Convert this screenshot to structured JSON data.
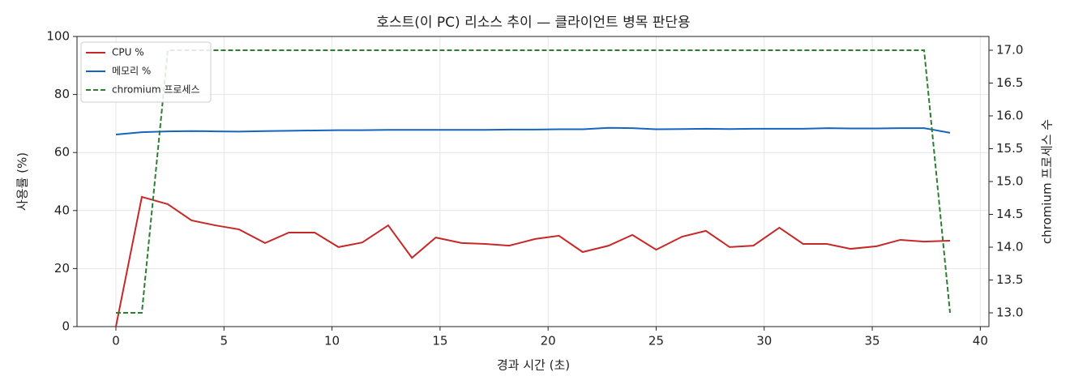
{
  "chart_data": {
    "type": "line",
    "title": "호스트(이 PC) 리소스 추이 — 클라이언트 병목 판단용",
    "xlabel": "경과 시간 (초)",
    "ylabel": "사용률 (%)",
    "y2label": "chromium 프로세스 수",
    "x": [
      0,
      1.2,
      2.4,
      3.5,
      4.6,
      5.7,
      6.9,
      8.0,
      9.2,
      10.3,
      11.4,
      12.6,
      13.7,
      14.8,
      16.0,
      17.1,
      18.2,
      19.4,
      20.5,
      21.6,
      22.8,
      23.9,
      25.0,
      26.2,
      27.3,
      28.4,
      29.5,
      30.7,
      31.8,
      32.9,
      34.0,
      35.2,
      36.3,
      37.4,
      38.6
    ],
    "series": [
      {
        "name": "CPU %",
        "color": "#c62828",
        "linestyle": "solid",
        "values": [
          0,
          44.7,
          42.2,
          36.6,
          34.9,
          33.5,
          28.8,
          32.4,
          32.4,
          27.4,
          29.0,
          34.9,
          23.7,
          30.7,
          28.8,
          28.5,
          27.9,
          30.2,
          31.3,
          25.7,
          27.9,
          31.6,
          26.5,
          31.0,
          33.0,
          27.4,
          27.9,
          34.1,
          28.5,
          28.5,
          26.8,
          27.7,
          29.9,
          29.3,
          29.6
        ]
      },
      {
        "name": "메모리 %",
        "color": "#1565c0",
        "linestyle": "solid",
        "values": [
          66.2,
          67.0,
          67.3,
          67.4,
          67.3,
          67.2,
          67.4,
          67.5,
          67.6,
          67.7,
          67.7,
          67.8,
          67.8,
          67.8,
          67.8,
          67.8,
          67.9,
          67.9,
          68.0,
          68.0,
          68.5,
          68.4,
          68.0,
          68.1,
          68.2,
          68.1,
          68.2,
          68.2,
          68.2,
          68.4,
          68.3,
          68.3,
          68.4,
          68.4,
          66.8
        ]
      },
      {
        "name": "chromium 프로세스",
        "color": "#2e7d32",
        "linestyle": "dashed",
        "axis": "y2",
        "values": [
          13,
          13,
          17,
          17,
          17,
          17,
          17,
          17,
          17,
          17,
          17,
          17,
          17,
          17,
          17,
          17,
          17,
          17,
          17,
          17,
          17,
          17,
          17,
          17,
          17,
          17,
          17,
          17,
          17,
          17,
          17,
          17,
          17,
          17,
          13
        ]
      }
    ],
    "xlim": [
      -1.8,
      40.4
    ],
    "xticks": [
      0,
      5,
      10,
      15,
      20,
      25,
      30,
      35,
      40
    ],
    "ylim": [
      0,
      100
    ],
    "yticks": [
      0,
      20,
      40,
      60,
      80,
      100
    ],
    "y2lim": [
      12.79,
      17.21
    ],
    "y2ticks": [
      {
        "value": 13,
        "label": "13.0"
      },
      {
        "value": 13.5,
        "label": "13.5"
      },
      {
        "value": 14,
        "label": "14.0"
      },
      {
        "value": 14.5,
        "label": "14.5"
      },
      {
        "value": 15,
        "label": "15.0"
      },
      {
        "value": 15.5,
        "label": "15.5"
      },
      {
        "value": 16,
        "label": "16.0"
      },
      {
        "value": 16.5,
        "label": "16.5"
      },
      {
        "value": 17,
        "label": "17.0"
      }
    ],
    "grid": true,
    "legend": "upper-left"
  }
}
